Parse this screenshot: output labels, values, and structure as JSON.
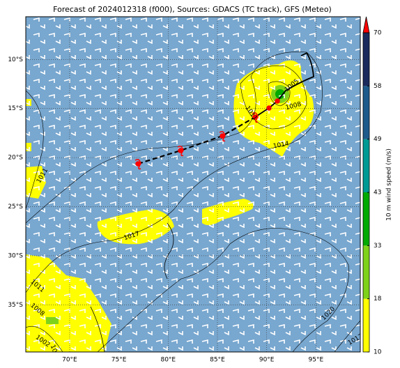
{
  "title": "Forecast of 2024012318 (f000), Sources: GDACS (TC track), GFS (Meteo)",
  "map": {
    "xlim": [
      65.55,
      99.5
    ],
    "ylim": [
      -39.8,
      -5.65
    ],
    "xticks": [
      {
        "value": 70,
        "label": "70°E"
      },
      {
        "value": 75,
        "label": "75°E"
      },
      {
        "value": 80,
        "label": "80°E"
      },
      {
        "value": 85,
        "label": "85°E"
      },
      {
        "value": 90,
        "label": "90°E"
      },
      {
        "value": 95,
        "label": "95°E"
      }
    ],
    "yticks": [
      {
        "value": -10,
        "label": "10°S"
      },
      {
        "value": -15,
        "label": "15°S"
      },
      {
        "value": -20,
        "label": "20°S"
      },
      {
        "value": -25,
        "label": "25°S"
      },
      {
        "value": -30,
        "label": "30°S"
      },
      {
        "value": -35,
        "label": "35°S"
      }
    ],
    "grid": true,
    "isobar_labels": [
      "1011",
      "1008",
      "1005",
      "1014",
      "1011",
      "1017",
      "1011",
      "1008",
      "1002",
      "1005",
      "1020",
      "1017"
    ]
  },
  "colorbar": {
    "label": "10 m wind speed (m/s)",
    "ticks": [
      10,
      18,
      33,
      43,
      49,
      58,
      70
    ],
    "colors": [
      "#ffff00",
      "#7fd21a",
      "#00aa00",
      "#009a94",
      "#1e5b8c",
      "#1b2a5c"
    ],
    "extend_color": "#ff0000"
  }
}
